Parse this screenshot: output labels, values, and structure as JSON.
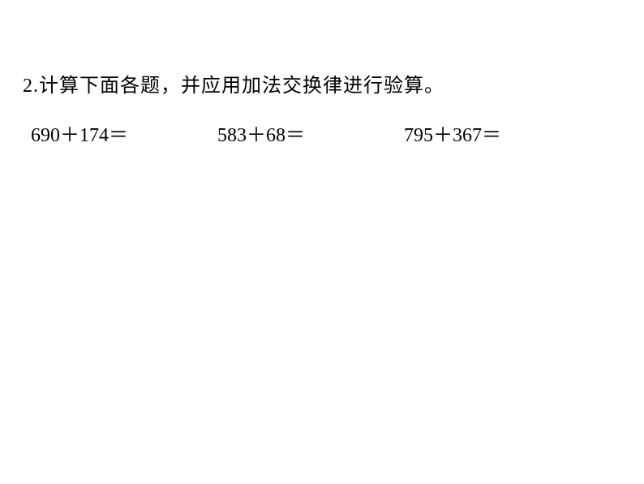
{
  "instruction": {
    "number": "2.",
    "text": "计算下面各题，并应用加法交换律进行验算。"
  },
  "problems": [
    {
      "expression": "690＋174＝"
    },
    {
      "expression": "583＋68＝"
    },
    {
      "expression": "795＋367＝"
    }
  ],
  "styling": {
    "background_color": "#ffffff",
    "text_color": "#000000",
    "instruction_fontsize": 24,
    "problem_fontsize": 24,
    "instruction_font": "SimSun",
    "problem_font": "Times New Roman"
  }
}
